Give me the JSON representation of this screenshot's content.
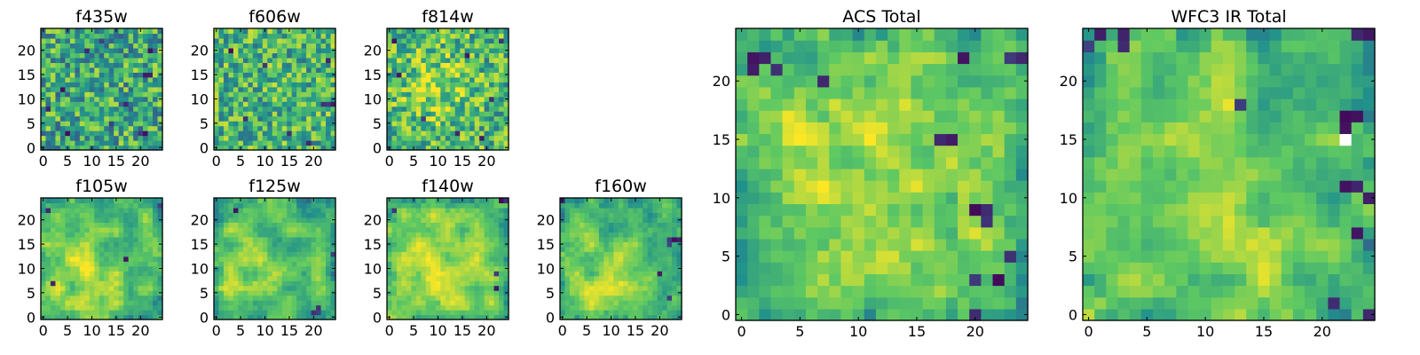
{
  "figure": {
    "colormap": "viridis",
    "colormap_stops": [
      "#440154",
      "#3b528b",
      "#21918c",
      "#5ec962",
      "#fde725"
    ],
    "saturated_color": "#ffffff",
    "frame_color": "#000000"
  },
  "chart_data": [
    {
      "type": "heatmap",
      "title": "f435w",
      "grid": [
        25,
        25
      ],
      "xlim": [
        0,
        24
      ],
      "ylim": [
        0,
        24
      ],
      "xticks": [
        "0",
        "5",
        "10",
        "15",
        "20"
      ],
      "yticks": [
        "0",
        "5",
        "10",
        "15",
        "20"
      ],
      "vrange": [
        0.0,
        1.0
      ],
      "texture": "fine-noise",
      "mean_level": 0.6,
      "spread": 0.3,
      "dark_pixels": [
        [
          21,
          15
        ],
        [
          22,
          15
        ],
        [
          20,
          3
        ],
        [
          21,
          3
        ],
        [
          4,
          12
        ],
        [
          9,
          20
        ],
        [
          14,
          5
        ],
        [
          17,
          9
        ],
        [
          12,
          22
        ],
        [
          5,
          3
        ],
        [
          22,
          20
        ],
        [
          1,
          8
        ]
      ]
    },
    {
      "type": "heatmap",
      "title": "f606w",
      "grid": [
        25,
        25
      ],
      "xlim": [
        0,
        24
      ],
      "ylim": [
        0,
        24
      ],
      "xticks": [
        "0",
        "5",
        "10",
        "15",
        "20"
      ],
      "yticks": [
        "0",
        "5",
        "10",
        "15",
        "20"
      ],
      "vrange": [
        0.0,
        1.0
      ],
      "texture": "fine-noise",
      "mean_level": 0.65,
      "spread": 0.28,
      "dark_pixels": [
        [
          22,
          9
        ],
        [
          23,
          9
        ],
        [
          24,
          9
        ],
        [
          3,
          20
        ],
        [
          15,
          3
        ],
        [
          10,
          17
        ],
        [
          19,
          1
        ],
        [
          6,
          6
        ],
        [
          23,
          18
        ]
      ]
    },
    {
      "type": "heatmap",
      "title": "f814w",
      "grid": [
        25,
        25
      ],
      "xlim": [
        0,
        24
      ],
      "ylim": [
        0,
        24
      ],
      "xticks": [
        "0",
        "5",
        "10",
        "15",
        "20"
      ],
      "yticks": [
        "0",
        "5",
        "10",
        "15",
        "20"
      ],
      "vrange": [
        0.0,
        1.0
      ],
      "texture": "fine-noise",
      "mean_level": 0.66,
      "spread": 0.28,
      "bright_center": [
        10,
        13,
        5
      ],
      "dark_pixels": [
        [
          1,
          22
        ],
        [
          23,
          22
        ],
        [
          21,
          10
        ],
        [
          16,
          19
        ],
        [
          7,
          6
        ],
        [
          14,
          3
        ],
        [
          2,
          15
        ],
        [
          19,
          2
        ]
      ]
    },
    {
      "type": "heatmap",
      "title": "f105w",
      "grid": [
        25,
        25
      ],
      "xlim": [
        0,
        24
      ],
      "ylim": [
        0,
        24
      ],
      "xticks": [
        "0",
        "5",
        "10",
        "15",
        "20"
      ],
      "yticks": [
        "0",
        "5",
        "10",
        "15",
        "20"
      ],
      "vrange": [
        0.0,
        1.0
      ],
      "texture": "smooth",
      "mean_level": 0.68,
      "spread": 0.22,
      "bright_center": [
        9,
        8,
        7
      ],
      "dark_pixels": [
        [
          1,
          22
        ],
        [
          24,
          23
        ],
        [
          2,
          7
        ],
        [
          17,
          12
        ]
      ]
    },
    {
      "type": "heatmap",
      "title": "f125w",
      "grid": [
        25,
        25
      ],
      "xlim": [
        0,
        24
      ],
      "ylim": [
        0,
        24
      ],
      "xticks": [
        "0",
        "5",
        "10",
        "15",
        "20"
      ],
      "yticks": [
        "0",
        "5",
        "10",
        "15",
        "20"
      ],
      "vrange": [
        0.0,
        1.0
      ],
      "texture": "smooth",
      "mean_level": 0.66,
      "spread": 0.22,
      "bright_center": [
        6,
        8,
        7
      ],
      "dark_pixels": [
        [
          21,
          1
        ],
        [
          21,
          2
        ],
        [
          20,
          1
        ],
        [
          24,
          13
        ],
        [
          4,
          22
        ]
      ]
    },
    {
      "type": "heatmap",
      "title": "f140w",
      "grid": [
        25,
        25
      ],
      "xlim": [
        0,
        24
      ],
      "ylim": [
        0,
        24
      ],
      "xticks": [
        "0",
        "5",
        "10",
        "15",
        "20"
      ],
      "yticks": [
        "0",
        "5",
        "10",
        "15",
        "20"
      ],
      "vrange": [
        0.0,
        1.0
      ],
      "texture": "smooth",
      "mean_level": 0.7,
      "spread": 0.2,
      "bright_center": [
        10,
        10,
        8
      ],
      "dark_pixels": [
        [
          24,
          24
        ],
        [
          23,
          24
        ],
        [
          22,
          9
        ],
        [
          22,
          6
        ],
        [
          1,
          22
        ]
      ]
    },
    {
      "type": "heatmap",
      "title": "f160w",
      "grid": [
        25,
        25
      ],
      "xlim": [
        0,
        24
      ],
      "ylim": [
        0,
        24
      ],
      "xticks": [
        "0",
        "5",
        "10",
        "15",
        "20"
      ],
      "yticks": [
        "0",
        "5",
        "10",
        "15",
        "20"
      ],
      "vrange": [
        0.0,
        1.0
      ],
      "texture": "smooth",
      "mean_level": 0.66,
      "spread": 0.22,
      "bright_center": [
        8,
        7,
        7
      ],
      "dark_pixels": [
        [
          22,
          16
        ],
        [
          23,
          16
        ],
        [
          24,
          16
        ],
        [
          22,
          15
        ],
        [
          20,
          9
        ],
        [
          22,
          4
        ],
        [
          0,
          24
        ]
      ]
    },
    {
      "type": "heatmap",
      "title": "ACS Total",
      "grid": [
        25,
        25
      ],
      "xlim": [
        0,
        24
      ],
      "ylim": [
        0,
        24
      ],
      "xticks": [
        "0",
        "5",
        "10",
        "15",
        "20"
      ],
      "yticks": [
        "0",
        "5",
        "10",
        "15",
        "20"
      ],
      "vrange": [
        0.0,
        1.0
      ],
      "texture": "medium",
      "mean_level": 0.7,
      "spread": 0.2,
      "bright_center": [
        10,
        12,
        7
      ],
      "dark_pixels": [
        [
          1,
          21
        ],
        [
          1,
          22
        ],
        [
          2,
          22
        ],
        [
          19,
          22
        ],
        [
          23,
          22
        ],
        [
          24,
          22
        ],
        [
          20,
          9
        ],
        [
          21,
          9
        ],
        [
          21,
          8
        ],
        [
          23,
          5
        ],
        [
          22,
          3
        ],
        [
          20,
          3
        ],
        [
          3,
          21
        ],
        [
          7,
          20
        ],
        [
          17,
          15
        ],
        [
          18,
          15
        ],
        [
          20,
          0
        ]
      ]
    },
    {
      "type": "heatmap",
      "title": "WFC3 IR Total",
      "grid": [
        25,
        25
      ],
      "xlim": [
        0,
        24
      ],
      "ylim": [
        0,
        24
      ],
      "xticks": [
        "0",
        "5",
        "10",
        "15",
        "20"
      ],
      "yticks": [
        "0",
        "5",
        "10",
        "15",
        "20"
      ],
      "vrange": [
        0.0,
        1.0
      ],
      "texture": "smooth",
      "mean_level": 0.68,
      "spread": 0.22,
      "bright_center": [
        7,
        9,
        8
      ],
      "dark_pixels": [
        [
          3,
          24
        ],
        [
          3,
          23
        ],
        [
          1,
          24
        ],
        [
          23,
          24
        ],
        [
          24,
          24
        ],
        [
          22,
          17
        ],
        [
          23,
          17
        ],
        [
          22,
          16
        ],
        [
          22,
          11
        ],
        [
          23,
          11
        ],
        [
          24,
          10
        ],
        [
          23,
          7
        ],
        [
          0,
          23
        ],
        [
          21,
          1
        ],
        [
          24,
          0
        ],
        [
          13,
          18
        ]
      ],
      "saturated_pixels": [
        [
          22,
          15
        ]
      ]
    }
  ]
}
